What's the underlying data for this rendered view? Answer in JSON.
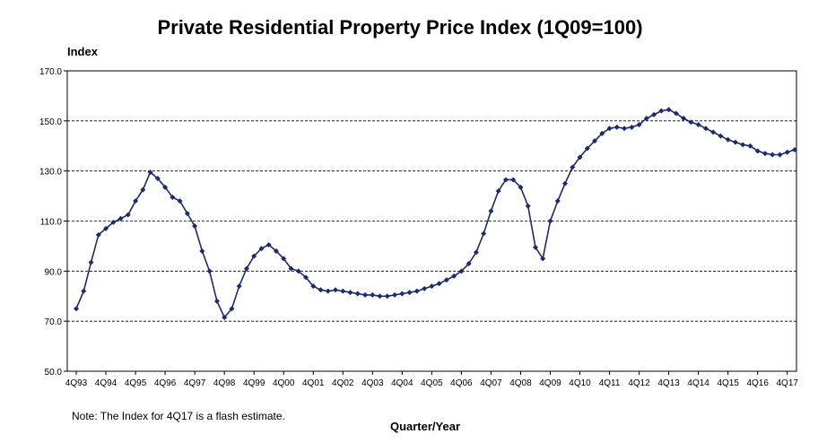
{
  "chart_data": {
    "type": "line",
    "title": "Private Residential Property Price Index (1Q09=100)",
    "ylabel": "Index",
    "xlabel": "Quarter/Year",
    "note": "Note: The Index for 4Q17 is a flash estimate.",
    "ylim": [
      50,
      170
    ],
    "yticks": [
      "50.0",
      "70.0",
      "90.0",
      "110.0",
      "130.0",
      "150.0",
      "170.0"
    ],
    "ytick_values": [
      50,
      70,
      90,
      110,
      130,
      150,
      170
    ],
    "xtick_labels": [
      "4Q93",
      "4Q94",
      "4Q95",
      "4Q96",
      "4Q97",
      "4Q98",
      "4Q99",
      "4Q00",
      "4Q01",
      "4Q02",
      "4Q03",
      "4Q04",
      "4Q05",
      "4Q06",
      "4Q07",
      "4Q08",
      "4Q09",
      "4Q10",
      "4Q11",
      "4Q12",
      "4Q13",
      "4Q14",
      "4Q15",
      "4Q16",
      "4Q17"
    ],
    "grid": "horizontal-dashed",
    "line_color": "#1f2a6e",
    "marker_color": "#1f2a6e",
    "series": [
      {
        "values": [
          75.0,
          82.0,
          93.5,
          104.5,
          107.0,
          109.5,
          111.0,
          112.5,
          118.0,
          122.5,
          129.5,
          127.0,
          123.5,
          119.5,
          118.0,
          113.0,
          108.0,
          98.0,
          90.0,
          78.0,
          71.5,
          75.0,
          84.0,
          91.0,
          96.0,
          99.0,
          100.5,
          98.0,
          95.0,
          91.0,
          90.0,
          87.5,
          84.0,
          82.5,
          82.0,
          82.5,
          82.0,
          81.5,
          81.0,
          80.5,
          80.5,
          80.0,
          80.0,
          80.5,
          81.0,
          81.5,
          82.0,
          83.0,
          84.0,
          85.0,
          86.5,
          88.0,
          90.0,
          93.0,
          97.5,
          105.0,
          114.0,
          122.0,
          126.5,
          126.5,
          123.5,
          116.0,
          99.5,
          95.0,
          110.0,
          118.0,
          125.0,
          131.5,
          135.5,
          139.0,
          142.0,
          145.0,
          147.0,
          147.5,
          147.0,
          147.5,
          148.5,
          151.0,
          152.5,
          154.0,
          154.5,
          153.0,
          151.0,
          149.5,
          148.5,
          147.0,
          145.5,
          144.0,
          142.5,
          141.5,
          140.5,
          140.0,
          138.0,
          137.0,
          136.5,
          136.5,
          137.5,
          138.5
        ]
      }
    ]
  }
}
